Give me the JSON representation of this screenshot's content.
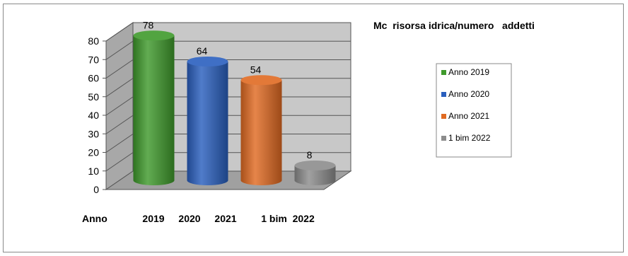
{
  "chart_data": {
    "type": "bar",
    "title": "Mc  risorsa idrica/numero   addetti",
    "xlabel": "Anno",
    "ylabel": "",
    "ylim": [
      0,
      80
    ],
    "yticks": [
      0,
      10,
      20,
      30,
      40,
      50,
      60,
      70,
      80
    ],
    "categories": [
      "2019",
      "2020",
      "2021",
      "1 bim  2022"
    ],
    "values": [
      78,
      64,
      54,
      8
    ],
    "series_names": [
      "Anno 2019",
      "Anno 2020",
      "Anno 2021",
      "1 bim 2022"
    ],
    "colors": [
      "#3f9a2c",
      "#2a5fbe",
      "#e06a22",
      "#8c8c8c"
    ],
    "grid": true,
    "legend_position": "right",
    "style": "3d-cylinder"
  }
}
